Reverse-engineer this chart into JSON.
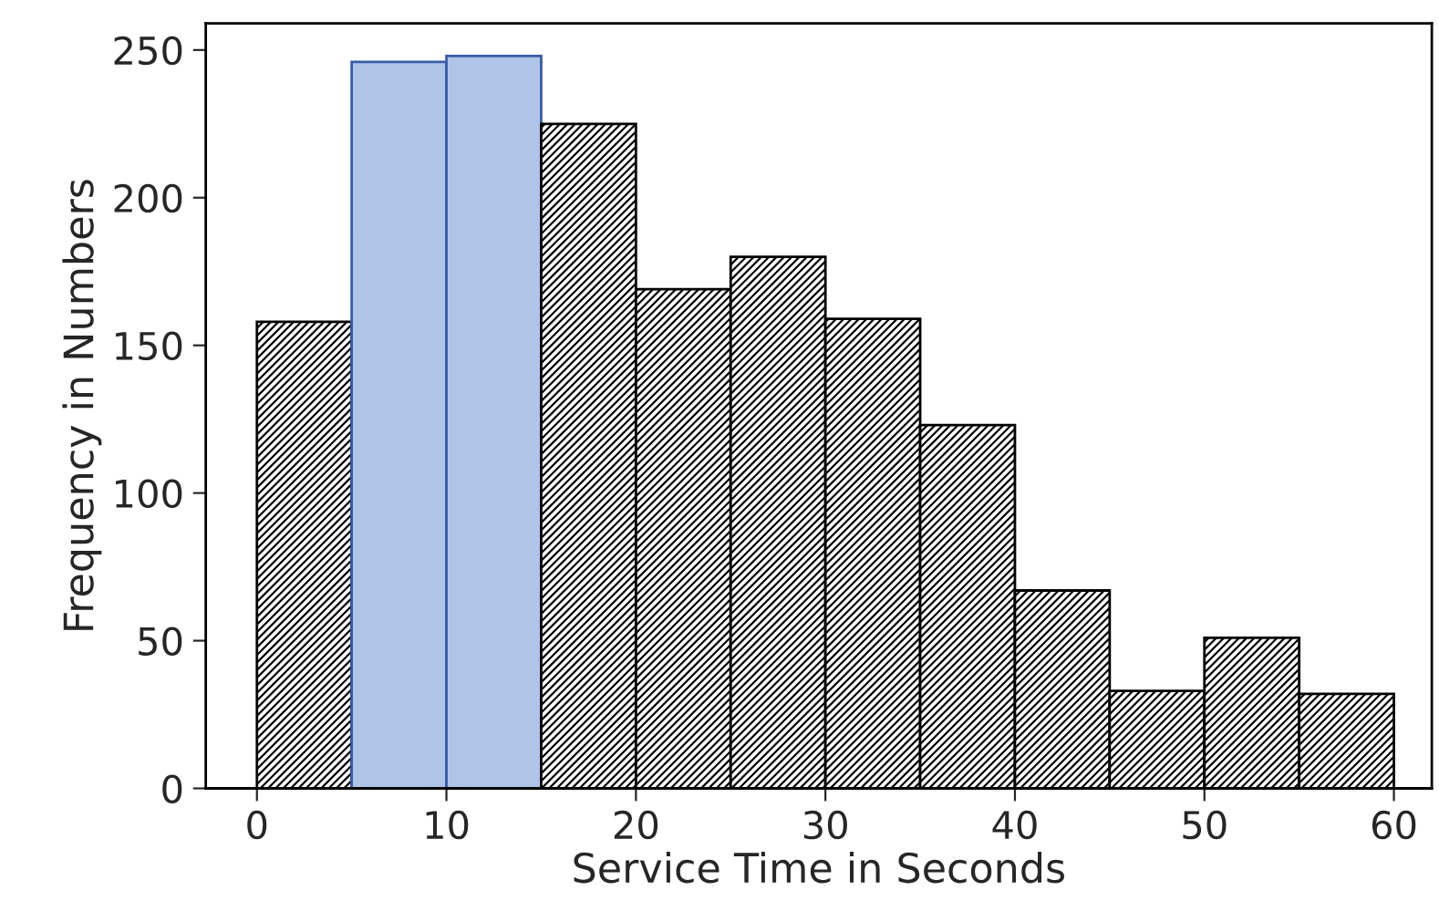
{
  "chart_data": {
    "type": "histogram",
    "xlabel": "Service Time in Seconds",
    "ylabel": "Frequency in Numbers",
    "bins": [
      0,
      5,
      10,
      15,
      20,
      25,
      30,
      35,
      40,
      45,
      50,
      55,
      60
    ],
    "values": [
      158,
      246,
      248,
      225,
      169,
      180,
      159,
      123,
      67,
      33,
      51,
      32
    ],
    "colors": [
      "#000000",
      "#b0c4e8",
      "#b0c4e8",
      "#000000",
      "#000000",
      "#000000",
      "#000000",
      "#000000",
      "#000000",
      "#000000",
      "#000000",
      "#000000"
    ],
    "xlim": [
      -2.7,
      62
    ],
    "ylim": [
      0,
      259
    ],
    "xticks": [
      0,
      10,
      20,
      30,
      40,
      50,
      60
    ],
    "yticks": [
      0,
      50,
      100,
      150,
      200,
      250
    ],
    "grid": false,
    "legend": false
  }
}
